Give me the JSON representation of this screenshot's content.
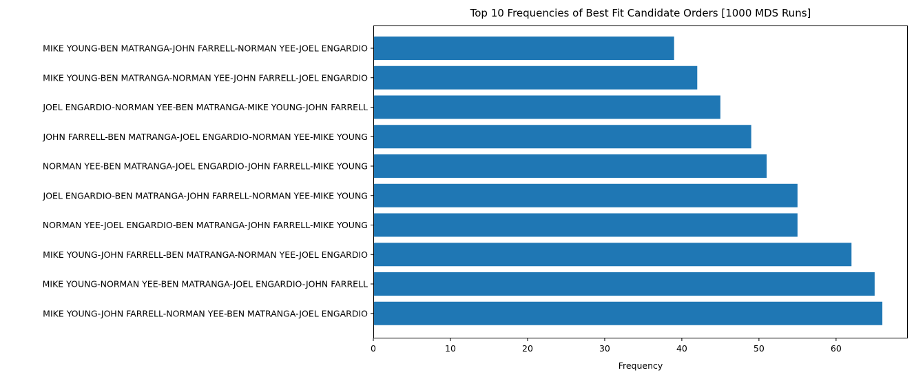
{
  "chart_data": {
    "type": "bar",
    "orientation": "horizontal",
    "title": "Top 10 Frequencies of Best Fit Candidate Orders [1000 MDS Runs]",
    "xlabel": "Frequency",
    "ylabel": "",
    "xlim": [
      0,
      69.3
    ],
    "xticks": [
      0,
      10,
      20,
      30,
      40,
      50,
      60
    ],
    "grid": false,
    "bar_color": "#1f77b4",
    "categories": [
      "MIKE YOUNG-BEN MATRANGA-JOHN FARRELL-NORMAN YEE-JOEL ENGARDIO",
      "MIKE YOUNG-BEN MATRANGA-NORMAN YEE-JOHN FARRELL-JOEL ENGARDIO",
      "JOEL ENGARDIO-NORMAN YEE-BEN MATRANGA-MIKE YOUNG-JOHN FARRELL",
      "JOHN FARRELL-BEN MATRANGA-JOEL ENGARDIO-NORMAN YEE-MIKE YOUNG",
      "NORMAN YEE-BEN MATRANGA-JOEL ENGARDIO-JOHN FARRELL-MIKE YOUNG",
      "JOEL ENGARDIO-BEN MATRANGA-JOHN FARRELL-NORMAN YEE-MIKE YOUNG",
      "NORMAN YEE-JOEL ENGARDIO-BEN MATRANGA-JOHN FARRELL-MIKE YOUNG",
      "MIKE YOUNG-JOHN FARRELL-BEN MATRANGA-NORMAN YEE-JOEL ENGARDIO",
      "MIKE YOUNG-NORMAN YEE-BEN MATRANGA-JOEL ENGARDIO-JOHN FARRELL",
      "MIKE YOUNG-JOHN FARRELL-NORMAN YEE-BEN MATRANGA-JOEL ENGARDIO"
    ],
    "values": [
      39,
      42,
      45,
      49,
      51,
      55,
      55,
      62,
      65,
      66
    ]
  }
}
